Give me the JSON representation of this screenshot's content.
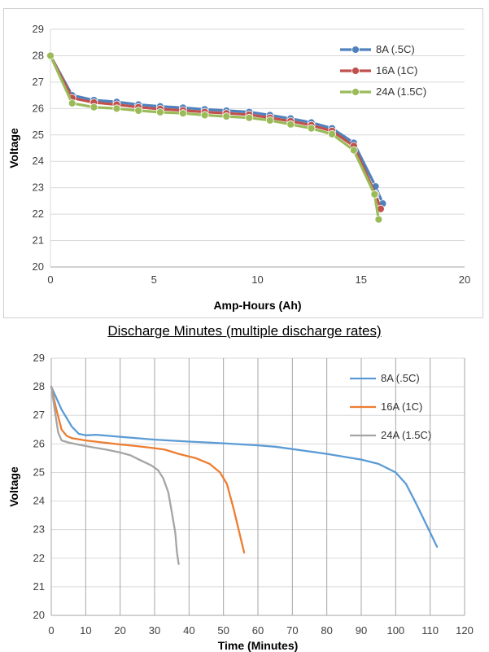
{
  "caption": "Discharge Minutes (multiple discharge rates)",
  "chart_data": [
    {
      "type": "line",
      "xlabel": "Amp-Hours (Ah)",
      "ylabel": "Voltage",
      "xlim": [
        0,
        20
      ],
      "ylim": [
        20,
        29
      ],
      "x_ticks": [
        0,
        5,
        10,
        15,
        20
      ],
      "y_ticks": [
        20,
        21,
        22,
        23,
        24,
        25,
        26,
        27,
        28,
        29
      ],
      "grid": "horizontal",
      "legend_position": "right",
      "markers": true,
      "series": [
        {
          "name": "8A (.5C)",
          "color": "#4f81bd",
          "x": [
            0,
            1.05,
            2.1,
            3.2,
            4.25,
            5.3,
            6.4,
            7.45,
            8.5,
            9.6,
            10.6,
            11.6,
            12.6,
            13.6,
            14.65,
            15.7,
            16.05
          ],
          "y": [
            28,
            26.5,
            26.32,
            26.25,
            26.15,
            26.08,
            26.03,
            25.97,
            25.92,
            25.87,
            25.75,
            25.62,
            25.47,
            25.25,
            24.7,
            23.05,
            22.4
          ]
        },
        {
          "name": "16A (1C)",
          "color": "#c0504d",
          "x": [
            0,
            1.05,
            2.1,
            3.2,
            4.25,
            5.3,
            6.4,
            7.45,
            8.5,
            9.6,
            10.6,
            11.6,
            12.6,
            13.6,
            14.65,
            15.7,
            15.95
          ],
          "y": [
            28,
            26.4,
            26.23,
            26.15,
            26.05,
            25.98,
            25.93,
            25.87,
            25.82,
            25.77,
            25.65,
            25.52,
            25.37,
            25.15,
            24.58,
            22.75,
            22.2
          ]
        },
        {
          "name": "24A (1.5C)",
          "color": "#9bbb59",
          "x": [
            0,
            1.05,
            2.1,
            3.2,
            4.25,
            5.3,
            6.4,
            7.45,
            8.5,
            9.6,
            10.6,
            11.6,
            12.6,
            13.6,
            14.65,
            15.65,
            15.85
          ],
          "y": [
            28,
            26.2,
            26.05,
            26.0,
            25.92,
            25.86,
            25.82,
            25.75,
            25.7,
            25.65,
            25.55,
            25.4,
            25.25,
            25.03,
            24.42,
            22.75,
            21.8
          ]
        }
      ]
    },
    {
      "type": "line",
      "xlabel": "Time (Minutes)",
      "ylabel": "Voltage",
      "xlim": [
        0,
        120
      ],
      "ylim": [
        20,
        29
      ],
      "x_ticks": [
        0,
        10,
        20,
        30,
        40,
        50,
        60,
        70,
        80,
        90,
        100,
        110,
        120
      ],
      "y_ticks": [
        20,
        21,
        22,
        23,
        24,
        25,
        26,
        27,
        28,
        29
      ],
      "grid": "both",
      "legend_position": "right",
      "markers": false,
      "series": [
        {
          "name": "8A (.5C)",
          "color": "#5b9bd5",
          "x": [
            0,
            3,
            6,
            8,
            10,
            13,
            20,
            30,
            40,
            50,
            60,
            65,
            70,
            80,
            90,
            95,
            100,
            103,
            106,
            110,
            112
          ],
          "y": [
            28,
            27.2,
            26.6,
            26.35,
            26.3,
            26.32,
            26.25,
            26.15,
            26.08,
            26.02,
            25.95,
            25.9,
            25.82,
            25.65,
            25.45,
            25.3,
            25.0,
            24.6,
            23.9,
            22.9,
            22.4
          ]
        },
        {
          "name": "16A (1C)",
          "color": "#ed7d31",
          "x": [
            0,
            1.5,
            3,
            4.5,
            6,
            10,
            15,
            20,
            25,
            30,
            33,
            37,
            42,
            46,
            49,
            51,
            53,
            55,
            56
          ],
          "y": [
            28,
            27.2,
            26.5,
            26.28,
            26.2,
            26.12,
            26.05,
            25.98,
            25.92,
            25.85,
            25.8,
            25.65,
            25.5,
            25.3,
            25.0,
            24.6,
            23.7,
            22.7,
            22.2
          ]
        },
        {
          "name": "24A (1.5C)",
          "color": "#a5a5a5",
          "x": [
            0,
            1,
            2,
            3,
            5,
            8,
            12,
            16,
            20,
            23,
            26,
            29,
            31,
            32.5,
            34,
            35,
            36,
            36.5,
            37
          ],
          "y": [
            28,
            27.2,
            26.4,
            26.12,
            26.05,
            25.97,
            25.88,
            25.8,
            25.7,
            25.6,
            25.42,
            25.25,
            25.08,
            24.8,
            24.3,
            23.6,
            22.9,
            22.2,
            21.8
          ]
        }
      ]
    }
  ]
}
